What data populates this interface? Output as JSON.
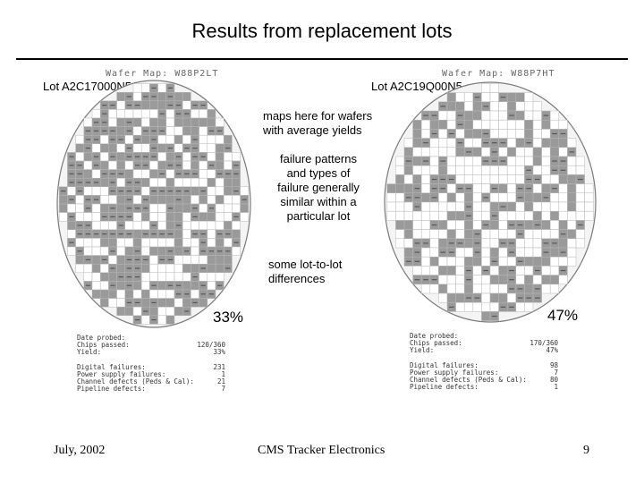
{
  "slide": {
    "title": "Results from replacement lots",
    "footer_left": "July, 2002",
    "footer_center": "CMS Tracker Electronics",
    "footer_right": "9"
  },
  "wafers": [
    {
      "lot": "Lot A2C17000N5",
      "map_title": "Wafer Map: W88P2LT",
      "yield_pct": "33%",
      "stats": [
        {
          "label": "Date probed:",
          "value": ""
        },
        {
          "label": "Chips passed:",
          "value": "120/360"
        },
        {
          "label": "Yield:",
          "value": "33%"
        },
        {
          "label": "",
          "value": ""
        },
        {
          "label": "Digital failures:",
          "value": "231"
        },
        {
          "label": "Power supply failures:",
          "value": "1"
        },
        {
          "label": "Channel defects (Peds & Cal):",
          "value": "21"
        },
        {
          "label": "Pipeline defects:",
          "value": "7"
        }
      ]
    },
    {
      "lot": "Lot A2C19Q00N5",
      "map_title": "Wafer Map: W88P7HT",
      "yield_pct": "47%",
      "stats": [
        {
          "label": "Date probed:",
          "value": ""
        },
        {
          "label": "Chips passed:",
          "value": "170/360"
        },
        {
          "label": "Yield:",
          "value": "47%"
        },
        {
          "label": "",
          "value": ""
        },
        {
          "label": "Digital failures:",
          "value": "98"
        },
        {
          "label": "Power supply failures:",
          "value": "7"
        },
        {
          "label": "Channel defects (Peds & Cal):",
          "value": "80"
        },
        {
          "label": "Pipeline defects:",
          "value": "1"
        }
      ]
    }
  ],
  "notes": {
    "note1": "maps here for wafers with average yields",
    "note2": "failure patterns and types of failure generally similar within a particular lot",
    "note3": "some lot-to-lot differences"
  },
  "colors": {
    "fail_cell": "#9a9a9a",
    "pass_cell": "#ffffff",
    "grid_line": "#b8b8b8",
    "wafer_edge": "#7a7a7a"
  }
}
